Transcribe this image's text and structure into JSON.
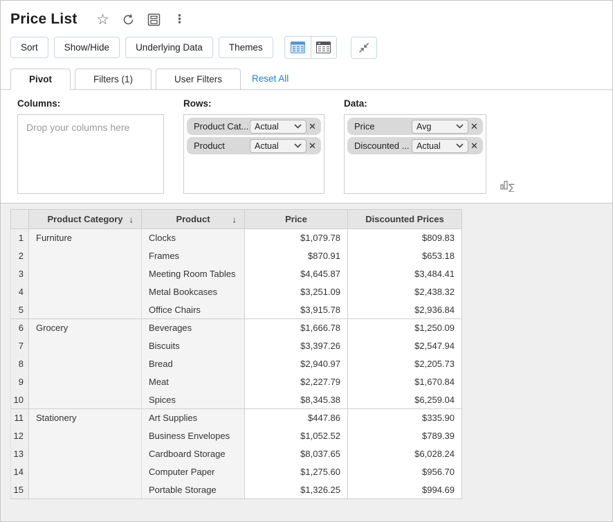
{
  "header": {
    "title": "Price List",
    "icons": [
      "star-icon",
      "refresh-icon",
      "save-icon",
      "kebab-menu-icon"
    ]
  },
  "colors": {
    "accent_link": "#1d7fd4",
    "icon_blue": "#4d96d9",
    "icon_dark": "#5a5a5a",
    "chip_gray": "#d9d9d9",
    "header_gray": "#e5e5e5"
  },
  "toolbar": {
    "buttons": [
      "Sort",
      "Show/Hide",
      "Underlying Data",
      "Themes"
    ],
    "icon_buttons": [
      "table-view-blue-icon",
      "table-view-dark-icon",
      "collapse-icon"
    ]
  },
  "tabs": {
    "items": [
      {
        "label": "Pivot",
        "active": true
      },
      {
        "label": "Filters (1)",
        "active": false
      },
      {
        "label": "User Filters",
        "active": false
      }
    ],
    "reset_all": "Reset All"
  },
  "pivot": {
    "columns_label": "Columns:",
    "columns_placeholder": "Drop your columns here",
    "rows_label": "Rows:",
    "rows_fields": [
      {
        "name": "Product Cat...",
        "agg": "Actual"
      },
      {
        "name": "Product",
        "agg": "Actual"
      }
    ],
    "data_label": "Data:",
    "data_fields": [
      {
        "name": "Price",
        "agg": "Avg"
      },
      {
        "name": "Discounted ...",
        "agg": "Actual"
      }
    ],
    "summary_icon": "sigma-summary-icon"
  },
  "table": {
    "headers": [
      "Product Category",
      "Product",
      "Price",
      "Discounted Prices"
    ],
    "sorted_columns": [
      0,
      1
    ],
    "rows": [
      {
        "num": "1",
        "category": "Furniture",
        "product": "Clocks",
        "price": "$1,079.78",
        "discounted": "$809.83"
      },
      {
        "num": "2",
        "category": "",
        "product": "Frames",
        "price": "$870.91",
        "discounted": "$653.18"
      },
      {
        "num": "3",
        "category": "",
        "product": "Meeting Room Tables",
        "price": "$4,645.87",
        "discounted": "$3,484.41"
      },
      {
        "num": "4",
        "category": "",
        "product": "Metal Bookcases",
        "price": "$3,251.09",
        "discounted": "$2,438.32"
      },
      {
        "num": "5",
        "category": "",
        "product": "Office Chairs",
        "price": "$3,915.78",
        "discounted": "$2,936.84"
      },
      {
        "num": "6",
        "category": "Grocery",
        "product": "Beverages",
        "price": "$1,666.78",
        "discounted": "$1,250.09"
      },
      {
        "num": "7",
        "category": "",
        "product": "Biscuits",
        "price": "$3,397.26",
        "discounted": "$2,547.94"
      },
      {
        "num": "8",
        "category": "",
        "product": "Bread",
        "price": "$2,940.97",
        "discounted": "$2,205.73"
      },
      {
        "num": "9",
        "category": "",
        "product": "Meat",
        "price": "$2,227.79",
        "discounted": "$1,670.84"
      },
      {
        "num": "10",
        "category": "",
        "product": "Spices",
        "price": "$8,345.38",
        "discounted": "$6,259.04"
      },
      {
        "num": "11",
        "category": "Stationery",
        "product": "Art Supplies",
        "price": "$447.86",
        "discounted": "$335.90"
      },
      {
        "num": "12",
        "category": "",
        "product": "Business Envelopes",
        "price": "$1,052.52",
        "discounted": "$789.39"
      },
      {
        "num": "13",
        "category": "",
        "product": "Cardboard Storage",
        "price": "$8,037.65",
        "discounted": "$6,028.24"
      },
      {
        "num": "14",
        "category": "",
        "product": "Computer Paper",
        "price": "$1,275.60",
        "discounted": "$956.70"
      },
      {
        "num": "15",
        "category": "",
        "product": "Portable Storage",
        "price": "$1,326.25",
        "discounted": "$994.69"
      }
    ]
  }
}
